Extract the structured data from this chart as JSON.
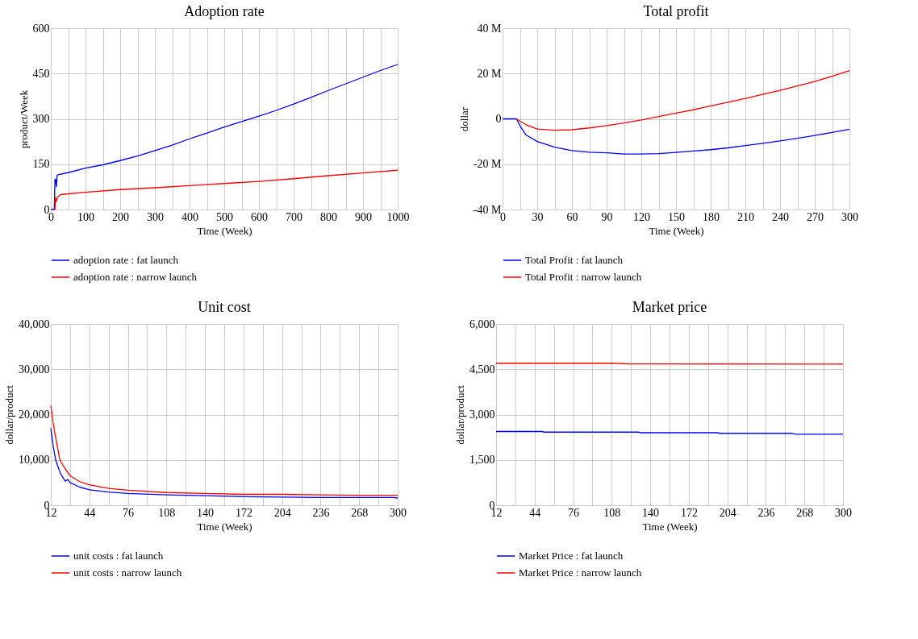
{
  "chart_data": [
    {
      "type": "line",
      "title": "Adoption rate",
      "xlabel": "Time (Week)",
      "ylabel": "product/Week",
      "xlim": [
        0,
        1000
      ],
      "xticks": [
        0,
        {
          "value": 50,
          "label": null
        },
        100,
        {
          "value": 150,
          "label": null
        },
        200,
        {
          "value": 250,
          "label": null
        },
        300,
        {
          "value": 350,
          "label": null
        },
        400,
        {
          "value": 450,
          "label": null
        },
        500,
        {
          "value": 550,
          "label": null
        },
        600,
        {
          "value": 650,
          "label": null
        },
        700,
        {
          "value": 750,
          "label": null
        },
        800,
        {
          "value": 850,
          "label": null
        },
        900,
        {
          "value": 950,
          "label": null
        },
        1000
      ],
      "ylim": [
        0,
        600
      ],
      "yticks": [
        0,
        150,
        300,
        450,
        600
      ],
      "grid": true,
      "legend": "bottom",
      "line_style": "solid",
      "series": [
        {
          "name": "adoption rate : fat launch",
          "color": "#0000ff",
          "x": [
            0,
            10,
            12,
            14,
            16,
            18,
            20,
            50,
            100,
            150,
            200,
            250,
            300,
            350,
            400,
            450,
            500,
            550,
            600,
            650,
            700,
            750,
            800,
            850,
            900,
            950,
            1000
          ],
          "values": [
            0,
            0,
            100,
            100,
            75,
            112,
            115,
            122,
            137,
            148,
            162,
            177,
            195,
            213,
            234,
            253,
            273,
            291,
            309,
            328,
            349,
            371,
            394,
            416,
            438,
            460,
            480
          ]
        },
        {
          "name": "adoption rate : narrow launch",
          "color": "#ff0000",
          "x": [
            12,
            13,
            15,
            20,
            30,
            100,
            200,
            300,
            400,
            500,
            600,
            700,
            800,
            900,
            1000
          ],
          "values": [
            0,
            40,
            25,
            42,
            50,
            57,
            66,
            72,
            79,
            86,
            93,
            102,
            112,
            121,
            130
          ]
        }
      ]
    },
    {
      "type": "line",
      "title": "Total profit",
      "xlabel": "Time (Week)",
      "ylabel": "dollar",
      "xlim": [
        0,
        300
      ],
      "xticks": [
        0,
        {
          "value": 15,
          "label": null
        },
        30,
        {
          "value": 45,
          "label": null
        },
        60,
        {
          "value": 75,
          "label": null
        },
        90,
        {
          "value": 105,
          "label": null
        },
        120,
        {
          "value": 135,
          "label": null
        },
        150,
        {
          "value": 165,
          "label": null
        },
        180,
        {
          "value": 195,
          "label": null
        },
        210,
        {
          "value": 225,
          "label": null
        },
        240,
        {
          "value": 255,
          "label": null
        },
        270,
        {
          "value": 285,
          "label": null
        },
        300
      ],
      "ylim": [
        -40000000,
        40000000
      ],
      "yticks": [
        {
          "value": -40000000,
          "label": "-40 M"
        },
        {
          "value": -20000000,
          "label": "-20 M"
        },
        0,
        {
          "value": 20000000,
          "label": "20 M"
        },
        {
          "value": 40000000,
          "label": "40 M"
        }
      ],
      "grid": true,
      "legend": "bottom",
      "line_style": "solid",
      "series": [
        {
          "name": "Total Profit : fat launch",
          "color": "#0000ff",
          "x": [
            0,
            12,
            15,
            20,
            30,
            45,
            60,
            75,
            90,
            105,
            120,
            135,
            150,
            165,
            180,
            195,
            210,
            225,
            240,
            255,
            270,
            285,
            300
          ],
          "values": [
            0,
            0,
            -3000000,
            -7000000,
            -10000000,
            -12500000,
            -14000000,
            -14700000,
            -15000000,
            -15500000,
            -15500000,
            -15300000,
            -14800000,
            -14200000,
            -13600000,
            -12800000,
            -11800000,
            -10800000,
            -9700000,
            -8600000,
            -7300000,
            -6000000,
            -4600000
          ]
        },
        {
          "name": "Total Profit : narrow launch",
          "color": "#ff0000",
          "x": [
            12,
            15,
            20,
            30,
            45,
            60,
            75,
            90,
            105,
            120,
            135,
            150,
            165,
            180,
            195,
            210,
            225,
            240,
            255,
            270,
            285,
            300
          ],
          "values": [
            0,
            -1000000,
            -2500000,
            -4500000,
            -5000000,
            -4800000,
            -4000000,
            -3000000,
            -1800000,
            -500000,
            1000000,
            2500000,
            4000000,
            5700000,
            7300000,
            9000000,
            10800000,
            12600000,
            14500000,
            16500000,
            18800000,
            21300000
          ]
        }
      ]
    },
    {
      "type": "line",
      "title": "Unit cost",
      "xlabel": "Time (Week)",
      "ylabel": "dollar/product",
      "xlim": [
        12,
        300
      ],
      "xticks": [
        12,
        {
          "value": 28,
          "label": null
        },
        44,
        {
          "value": 60,
          "label": null
        },
        76,
        {
          "value": 92,
          "label": null
        },
        108,
        {
          "value": 124,
          "label": null
        },
        140,
        {
          "value": 156,
          "label": null
        },
        172,
        {
          "value": 188,
          "label": null
        },
        204,
        {
          "value": 220,
          "label": null
        },
        236,
        {
          "value": 252,
          "label": null
        },
        268,
        {
          "value": 284,
          "label": null
        },
        300
      ],
      "ylim": [
        0,
        40000
      ],
      "yticks": [
        {
          "value": 0,
          "label": "0"
        },
        {
          "value": 10000,
          "label": "10,000"
        },
        {
          "value": 20000,
          "label": "20,000"
        },
        {
          "value": 30000,
          "label": "30,000"
        },
        {
          "value": 40000,
          "label": "40,000"
        }
      ],
      "grid": true,
      "legend": "bottom",
      "line_style": "solid",
      "series": [
        {
          "name": "unit costs : fat launch",
          "color": "#0000ff",
          "x": [
            12,
            14,
            16,
            18,
            20,
            24,
            26,
            28,
            36,
            44,
            60,
            76,
            108,
            140,
            172,
            204,
            236,
            268,
            296,
            300
          ],
          "values": [
            17000,
            13000,
            10000,
            8500,
            7000,
            5300,
            5700,
            5000,
            4000,
            3400,
            2900,
            2600,
            2300,
            2100,
            1900,
            1800,
            1700,
            1700,
            1700,
            1600
          ]
        },
        {
          "name": "unit costs : narrow launch",
          "color": "#ff0000",
          "x": [
            12,
            14,
            17,
            19.5,
            24,
            28,
            36,
            44,
            60,
            76,
            108,
            140,
            172,
            204,
            236,
            268,
            300
          ],
          "values": [
            22000,
            18000,
            13500,
            10000,
            8000,
            6500,
            5200,
            4500,
            3700,
            3300,
            2800,
            2600,
            2400,
            2400,
            2300,
            2200,
            2200
          ]
        }
      ]
    },
    {
      "type": "line",
      "title": "Market price",
      "xlabel": "Time (Week)",
      "ylabel": "dollar/product",
      "xlim": [
        12,
        300
      ],
      "xticks": [
        12,
        {
          "value": 28,
          "label": null
        },
        44,
        {
          "value": 60,
          "label": null
        },
        76,
        {
          "value": 92,
          "label": null
        },
        108,
        {
          "value": 124,
          "label": null
        },
        140,
        {
          "value": 156,
          "label": null
        },
        172,
        {
          "value": 188,
          "label": null
        },
        204,
        {
          "value": 220,
          "label": null
        },
        236,
        {
          "value": 252,
          "label": null
        },
        268,
        {
          "value": 284,
          "label": null
        },
        300
      ],
      "ylim": [
        0,
        6000
      ],
      "yticks": [
        {
          "value": 0,
          "label": "0"
        },
        {
          "value": 1500,
          "label": "1,500"
        },
        {
          "value": 3000,
          "label": "3,000"
        },
        {
          "value": 4500,
          "label": "4,500"
        },
        {
          "value": 6000,
          "label": "6,000"
        }
      ],
      "grid": true,
      "legend": "bottom",
      "line_style": "solid",
      "series": [
        {
          "name": "Market Price : fat launch",
          "color": "#0000ff",
          "x": [
            12,
            50,
            52,
            130,
            132,
            196,
            198,
            258,
            260,
            300
          ],
          "values": [
            2440,
            2440,
            2420,
            2420,
            2400,
            2400,
            2380,
            2380,
            2350,
            2350
          ]
        },
        {
          "name": "Market Price : narrow launch",
          "color": "#ff0000",
          "x": [
            12,
            108,
            120,
            300
          ],
          "values": [
            4700,
            4700,
            4680,
            4670
          ]
        }
      ]
    }
  ]
}
